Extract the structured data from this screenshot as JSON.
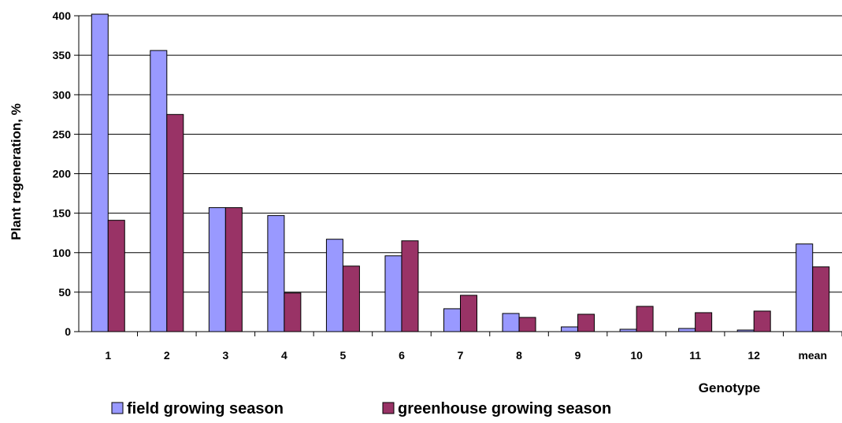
{
  "chart_data": {
    "type": "bar",
    "xlabel": "Genotype",
    "ylabel": "Plant regeneration, %",
    "ylim": [
      0,
      400
    ],
    "yticks": [
      0,
      50,
      100,
      150,
      200,
      250,
      300,
      350,
      400
    ],
    "grid": true,
    "legend_position": "bottom",
    "categories": [
      "1",
      "2",
      "3",
      "4",
      "5",
      "6",
      "7",
      "8",
      "9",
      "10",
      "11",
      "12",
      "mean"
    ],
    "series": [
      {
        "name": "field growing season",
        "color": "#9999ff",
        "values": [
          402,
          356,
          157,
          147,
          117,
          96,
          29,
          23,
          6,
          3,
          4,
          2,
          111
        ]
      },
      {
        "name": "greenhouse growing season",
        "color": "#993366",
        "values": [
          141,
          275,
          157,
          49,
          83,
          115,
          46,
          18,
          22,
          32,
          24,
          26,
          82
        ]
      }
    ]
  }
}
